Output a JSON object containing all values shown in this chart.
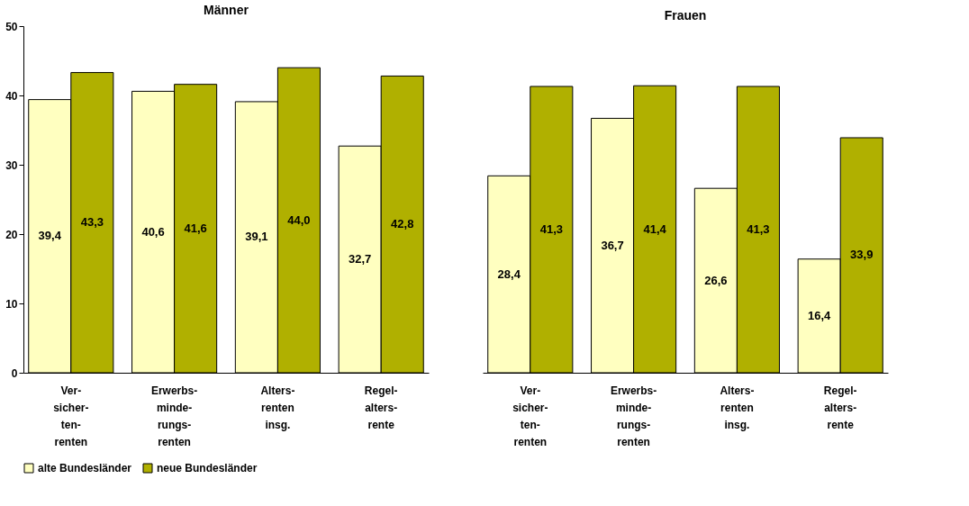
{
  "chart_data": [
    {
      "type": "bar",
      "title": "Männer",
      "categories": [
        "Ver-\nsicher-\nten-\nrenten",
        "Erwerbs-\nminde-\nrungs-\nrenten",
        "Alters-\nrenten\ninsg.",
        "Regel-\nalters-\nrente"
      ],
      "series": [
        {
          "name": "alte Bundesländer",
          "color": "#ffffc0",
          "values": [
            39.4,
            40.6,
            39.1,
            32.7
          ],
          "value_labels": [
            "39,4",
            "40,6",
            "39,1",
            "32,7"
          ]
        },
        {
          "name": "neue Bundesländer",
          "color": "#b0b000",
          "values": [
            43.3,
            41.6,
            44.0,
            42.8
          ],
          "value_labels": [
            "43,3",
            "41,6",
            "44,0",
            "42,8"
          ]
        }
      ],
      "ylim": [
        0,
        50
      ],
      "yticks": [
        0,
        10,
        20,
        30,
        40,
        50
      ],
      "legend": "bottom",
      "grid": false
    },
    {
      "type": "bar",
      "title": "Frauen",
      "categories": [
        "Ver-\nsicher-\nten-\nrenten",
        "Erwerbs-\nminde-\nrungs-\nrenten",
        "Alters-\nrenten\ninsg.",
        "Regel-\nalters-\nrente"
      ],
      "series": [
        {
          "name": "alte Bundesländer",
          "color": "#ffffc0",
          "values": [
            28.4,
            36.7,
            26.6,
            16.4
          ],
          "value_labels": [
            "28,4",
            "36,7",
            "26,6",
            "16,4"
          ]
        },
        {
          "name": "neue Bundesländer",
          "color": "#b0b000",
          "values": [
            41.3,
            41.4,
            41.3,
            33.9
          ],
          "value_labels": [
            "41,3",
            "41,4",
            "41,3",
            "33,9"
          ]
        }
      ],
      "ylim": [
        0,
        50
      ],
      "yticks": [
        0,
        10,
        20,
        30,
        40,
        50
      ],
      "tick_labels": "x",
      "legend": "bottom",
      "grid": false
    }
  ]
}
